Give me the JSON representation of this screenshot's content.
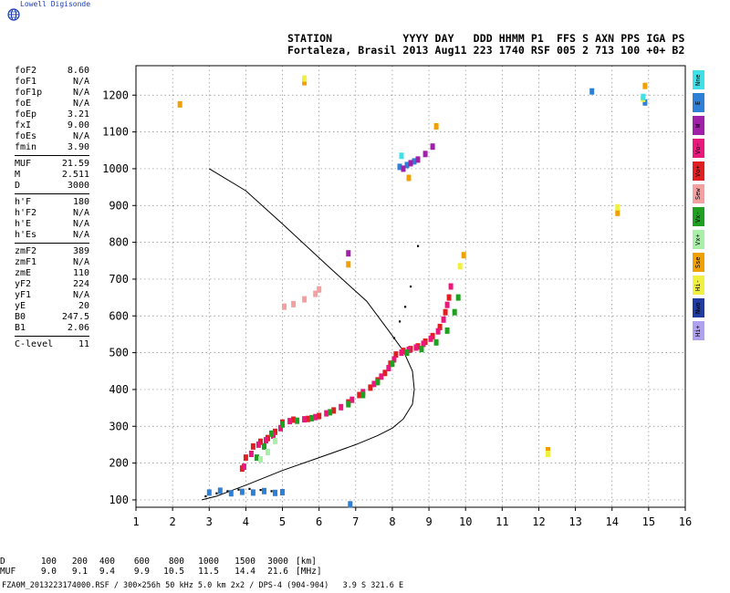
{
  "app": {
    "logo_text": "Lowell Digisonde"
  },
  "header": {
    "line1": "STATION           YYYY DAY   DDD HHMM P1  FFS S AXN PPS IGA PS",
    "line2": "Fortaleza, Brasil 2013 Aug11 223 1740 RSF 005 2 713 100 +0+ B2"
  },
  "params": [
    [
      {
        "k": "foF2",
        "v": "8.60"
      },
      {
        "k": "foF1",
        "v": "N/A"
      },
      {
        "k": "foF1p",
        "v": "N/A"
      },
      {
        "k": "foE",
        "v": "N/A"
      },
      {
        "k": "foEp",
        "v": "3.21"
      },
      {
        "k": "fxI",
        "v": "9.00"
      },
      {
        "k": "foEs",
        "v": "N/A"
      },
      {
        "k": "fmin",
        "v": "3.90"
      }
    ],
    [
      {
        "k": "MUF",
        "v": "21.59"
      },
      {
        "k": "M",
        "v": "2.511"
      },
      {
        "k": "D",
        "v": "3000"
      }
    ],
    [
      {
        "k": "h'F",
        "v": "180"
      },
      {
        "k": "h'F2",
        "v": "N/A"
      },
      {
        "k": "h'E",
        "v": "N/A"
      },
      {
        "k": "h'Es",
        "v": "N/A"
      }
    ],
    [
      {
        "k": "zmF2",
        "v": "389"
      },
      {
        "k": "zmF1",
        "v": "N/A"
      },
      {
        "k": "zmE",
        "v": "110"
      },
      {
        "k": "yF2",
        "v": "224"
      },
      {
        "k": "yF1",
        "v": "N/A"
      },
      {
        "k": "yE",
        "v": "20"
      },
      {
        "k": "B0",
        "v": "247.5"
      },
      {
        "k": "B1",
        "v": "2.06"
      }
    ],
    [
      {
        "k": "C-level",
        "v": "11"
      }
    ]
  ],
  "legend": [
    {
      "label": "Nne",
      "color": "#40e0e8"
    },
    {
      "label": "E",
      "color": "#2e7fd6"
    },
    {
      "label": "W",
      "color": "#a020a8"
    },
    {
      "label": "Vo-",
      "color": "#e8187c"
    },
    {
      "label": "Vo+",
      "color": "#e02020"
    },
    {
      "label": "Sew",
      "color": "#f4a0a0"
    },
    {
      "label": "Vx-",
      "color": "#20a020"
    },
    {
      "label": "Vx+",
      "color": "#a8f0a8"
    },
    {
      "label": "Sse",
      "color": "#f0a000"
    },
    {
      "label": "Hi-",
      "color": "#f0f040"
    },
    {
      "label": "Nwo",
      "color": "#203ca0"
    },
    {
      "label": "Hi+",
      "color": "#b0a0f0"
    }
  ],
  "footer": {
    "row1_label": "D",
    "row1_values": [
      "100",
      "200",
      "400",
      "600",
      "800",
      "1000",
      "1500",
      "3000"
    ],
    "row1_unit": "[km]",
    "row2_label": "MUF",
    "row2_values": [
      "9.0",
      "9.1",
      "9.4",
      "9.9",
      "10.5",
      "11.5",
      "14.4",
      "21.6"
    ],
    "row2_unit": "[MHz]",
    "file_info": "FZA0M_2013223174000.RSF / 300×256h 50 kHz 5.0 km 2x2 / DPS-4 (904-904)   3.9 S 321.6 E"
  },
  "chart_data": {
    "type": "scatter",
    "title": "",
    "xlabel": "",
    "ylabel": "",
    "xlim": [
      1,
      16
    ],
    "ylim": [
      80,
      1280
    ],
    "xticks": [
      1,
      2,
      3,
      4,
      5,
      6,
      7,
      8,
      9,
      10,
      11,
      12,
      13,
      14,
      15,
      16
    ],
    "yticks": [
      100,
      200,
      300,
      400,
      500,
      600,
      700,
      800,
      900,
      1000,
      1100,
      1200
    ],
    "grid": true,
    "profile_curve": {
      "name": "",
      "color": "#000000",
      "x": [
        2.8,
        3.2,
        4.0,
        5.0,
        6.0,
        7.0,
        7.6,
        8.0,
        8.3,
        8.55,
        8.6,
        8.55,
        8.3,
        7.9,
        7.3,
        6.3,
        5.0,
        4.0,
        3.0
      ],
      "y": [
        100,
        110,
        140,
        180,
        215,
        250,
        275,
        295,
        320,
        360,
        400,
        450,
        505,
        560,
        640,
        730,
        850,
        940,
        1000
      ]
    },
    "series": [
      {
        "label": "Vo+",
        "color": "#e02020",
        "x": [
          3.9,
          4.0,
          4.2,
          4.4,
          4.6,
          4.8,
          5.0,
          5.3,
          5.7,
          6.0,
          6.4,
          6.8,
          7.1,
          7.4,
          7.6,
          7.8,
          7.95,
          8.1,
          8.3,
          8.5,
          8.7,
          8.9,
          9.1,
          9.3,
          9.45,
          9.55
        ],
        "y": [
          185,
          215,
          245,
          258,
          268,
          285,
          310,
          318,
          320,
          328,
          343,
          365,
          385,
          405,
          425,
          445,
          470,
          495,
          505,
          510,
          517,
          530,
          545,
          570,
          610,
          650
        ]
      },
      {
        "label": "Vo-",
        "color": "#e8187c",
        "x": [
          3.95,
          4.15,
          4.35,
          4.55,
          4.75,
          4.95,
          5.2,
          5.6,
          5.9,
          6.2,
          6.6,
          6.9,
          7.2,
          7.5,
          7.7,
          7.9,
          8.05,
          8.25,
          8.45,
          8.65,
          8.85,
          9.05,
          9.25,
          9.4,
          9.5,
          9.6
        ],
        "y": [
          190,
          225,
          250,
          262,
          275,
          295,
          314,
          319,
          325,
          335,
          352,
          372,
          393,
          415,
          435,
          458,
          482,
          500,
          508,
          514,
          524,
          538,
          558,
          590,
          630,
          680
        ]
      },
      {
        "label": "Vx-",
        "color": "#20a020",
        "x": [
          4.3,
          4.5,
          4.7,
          5.0,
          5.4,
          5.8,
          6.3,
          6.8,
          7.2,
          7.6,
          8.0,
          8.4,
          8.8,
          9.2,
          9.5,
          9.7,
          9.8
        ],
        "y": [
          215,
          245,
          280,
          305,
          315,
          322,
          338,
          360,
          385,
          420,
          470,
          500,
          510,
          528,
          560,
          610,
          650
        ]
      },
      {
        "label": "Vx+",
        "color": "#a8f0a8",
        "x": [
          4.4,
          4.6,
          4.8
        ],
        "y": [
          210,
          230,
          260
        ]
      },
      {
        "label": "E",
        "color": "#2e7fd6",
        "x": [
          3.0,
          3.3,
          3.6,
          3.9,
          4.2,
          4.5,
          4.8,
          5.0,
          6.85,
          8.2,
          8.4,
          8.6,
          13.45,
          14.9
        ],
        "y": [
          120,
          125,
          118,
          122,
          120,
          124,
          119,
          121,
          88,
          1005,
          1010,
          1020,
          1210,
          1180
        ]
      },
      {
        "label": "W",
        "color": "#a020a8",
        "x": [
          8.3,
          8.5,
          8.7,
          8.9,
          9.1,
          6.8
        ],
        "y": [
          1000,
          1015,
          1025,
          1040,
          1060,
          770
        ]
      },
      {
        "label": "Sse",
        "color": "#f0a000",
        "x": [
          2.2,
          5.6,
          6.8,
          8.45,
          9.2,
          9.95,
          12.25,
          14.15,
          14.9
        ],
        "y": [
          1175,
          1235,
          740,
          975,
          1115,
          765,
          235,
          880,
          1225
        ]
      },
      {
        "label": "Hi-",
        "color": "#f0f040",
        "x": [
          5.6,
          9.85,
          12.25,
          14.15,
          14.85
        ],
        "y": [
          1245,
          735,
          225,
          895,
          1190
        ]
      },
      {
        "label": "Nne",
        "color": "#40e0e8",
        "x": [
          8.25,
          14.85
        ],
        "y": [
          1035,
          1195
        ]
      },
      {
        "label": "Sew",
        "color": "#f4a0a0",
        "x": [
          5.05,
          5.3,
          5.6,
          5.9,
          6.0
        ],
        "y": [
          625,
          632,
          645,
          660,
          672
        ]
      }
    ],
    "trace_black": {
      "x": [
        2.9,
        3.2,
        3.5,
        3.8,
        4.1,
        4.4,
        4.7,
        8.05,
        8.2,
        8.35,
        8.5,
        8.7
      ],
      "y": [
        110,
        118,
        124,
        128,
        130,
        127,
        124,
        540,
        585,
        625,
        680,
        790
      ]
    }
  }
}
